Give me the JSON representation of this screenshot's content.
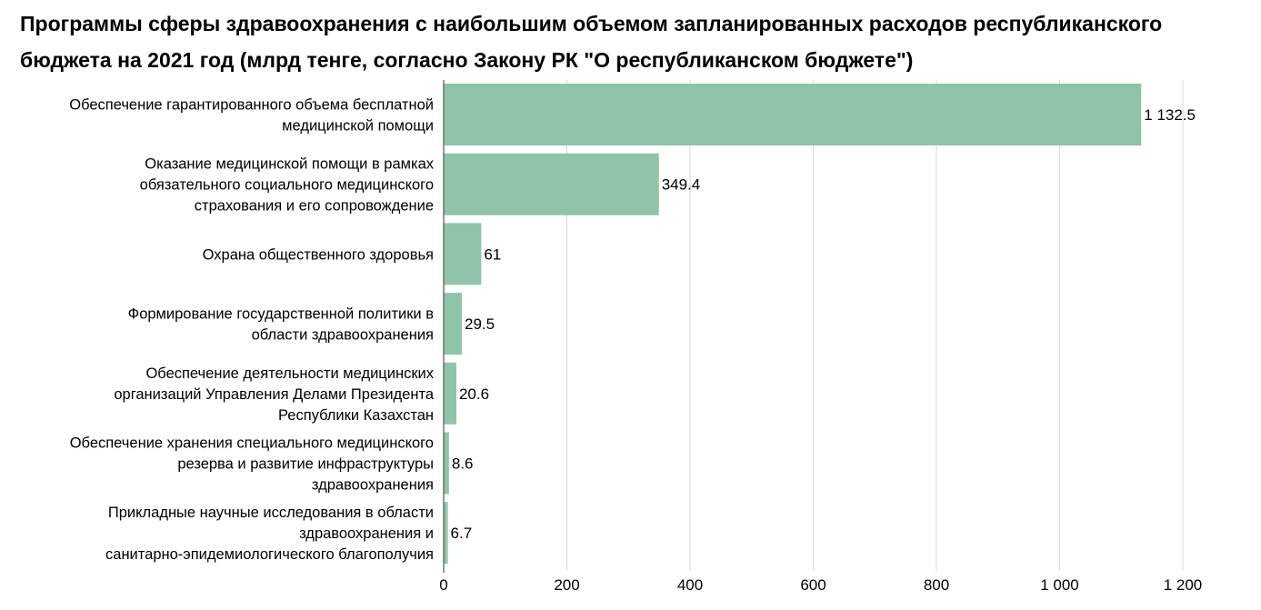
{
  "title": "Программы сферы здравоохранения с наибольшим объемом запланированных расходов республиканского бюджета на 2021 год (млрд тенге, согласно Закону РК \"О республиканском бюджете\")",
  "colors": {
    "bar": "#90c4a8",
    "grid": "#d9d9d9",
    "axis": "#555555"
  },
  "chart_data": {
    "type": "bar",
    "orientation": "horizontal",
    "title": "Программы сферы здравоохранения с наибольшим объемом запланированных расходов республиканского бюджета на 2021 год (млрд тенге, согласно Закону РК \"О республиканском бюджете\")",
    "xlabel": "",
    "ylabel": "",
    "xlim": [
      0,
      1200
    ],
    "grid": true,
    "categories": [
      [
        "Обеспечение гарантированного объема бесплатной",
        "медицинской помощи"
      ],
      [
        "Оказание медицинской помощи в рамках",
        "обязательного социального медицинского",
        "страхования и его сопровождение"
      ],
      [
        "Охрана общественного здоровья"
      ],
      [
        "Формирование государственной политики в",
        "области здравоохранения"
      ],
      [
        "Обеспечение деятельности медицинских",
        "организаций Управления Делами Президента",
        "Республики Казахстан"
      ],
      [
        "Обеспечение хранения специального медицинского",
        "резерва и развитие инфраструктуры",
        "здравоохранения"
      ],
      [
        "Прикладные научные исследования в области",
        "здравоохранения и",
        "санитарно-эпидемиологического благополучия"
      ]
    ],
    "values": [
      1132.5,
      349.4,
      61,
      29.5,
      20.6,
      8.6,
      6.7
    ],
    "value_labels": [
      "1 132.5",
      "349.4",
      "61",
      "29.5",
      "20.6",
      "8.6",
      "6.7"
    ],
    "ticks": [
      0,
      200,
      400,
      600,
      800,
      1000,
      1200
    ],
    "tick_labels": [
      "0",
      "200",
      "400",
      "600",
      "800",
      "1 000",
      "1 200"
    ]
  }
}
